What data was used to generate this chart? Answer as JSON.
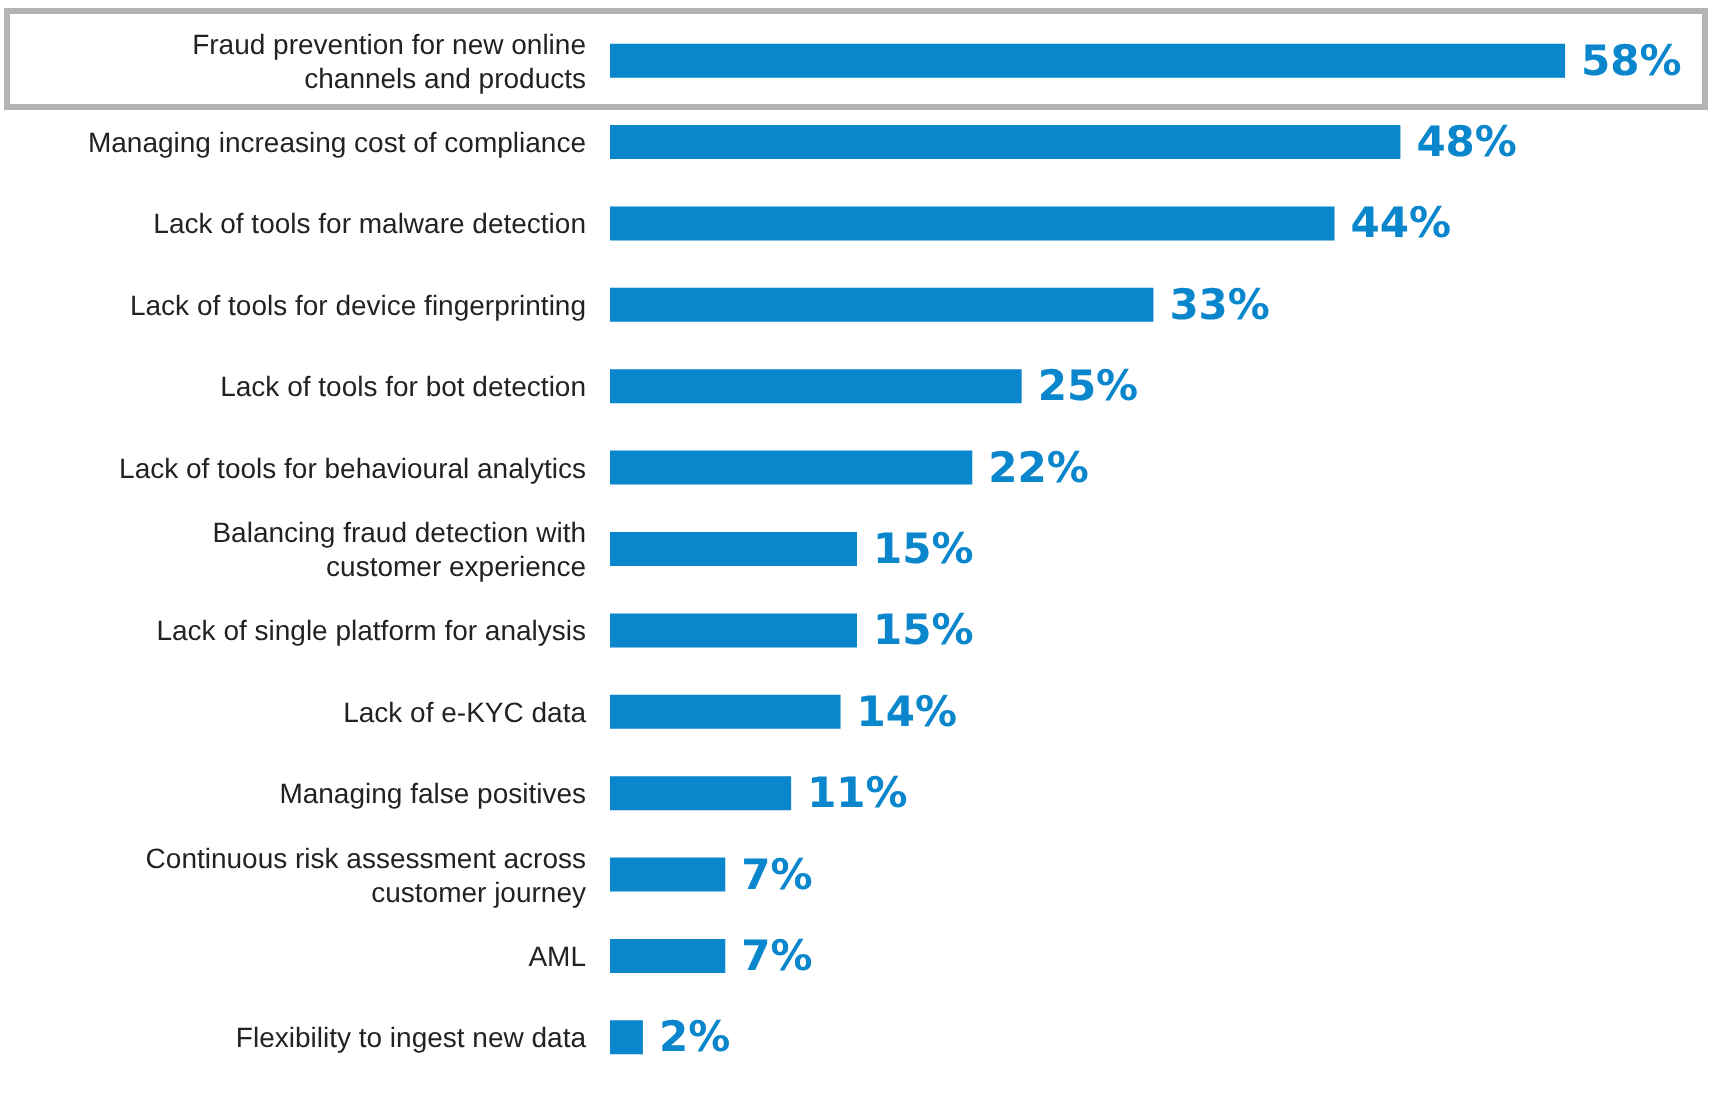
{
  "chart_data": {
    "type": "bar",
    "orientation": "horizontal",
    "categories": [
      "Fraud prevention for new online\nchannels and products",
      "Managing increasing cost of compliance",
      "Lack of tools for malware detection",
      "Lack of tools for device fingerprinting",
      "Lack of tools for bot detection",
      "Lack of tools for behavioural analytics",
      "Balancing fraud detection with\ncustomer experience",
      "Lack of single platform for analysis",
      "Lack of e-KYC data",
      "Managing false positives",
      "Continuous risk assessment across\ncustomer journey",
      "AML",
      "Flexibility to ingest new data"
    ],
    "values": [
      58,
      48,
      44,
      33,
      25,
      22,
      15,
      15,
      14,
      11,
      7,
      7,
      2
    ],
    "value_labels": [
      "58%",
      "48%",
      "44%",
      "33%",
      "25%",
      "22%",
      "15%",
      "15%",
      "14%",
      "11%",
      "7%",
      "7%",
      "2%"
    ],
    "color": "#0a86cc"
  }
}
